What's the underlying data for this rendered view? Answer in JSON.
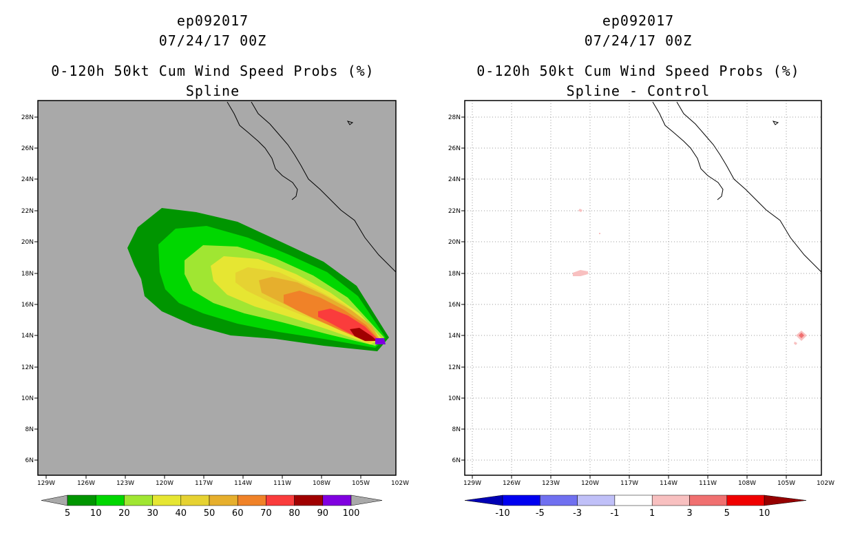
{
  "panels": [
    {
      "storm_id": "ep092017",
      "datetime": "07/24/17 00Z",
      "product": "0-120h 50kt Cum Wind Speed Probs (%)",
      "subtitle": "Spline"
    },
    {
      "storm_id": "ep092017",
      "datetime": "07/24/17 00Z",
      "product": "0-120h 50kt Cum Wind Speed Probs (%)",
      "subtitle": "Spline - Control"
    }
  ],
  "axes": {
    "lon_range": [
      -129.5,
      -102
    ],
    "lat_range": [
      5,
      29
    ],
    "lon_ticks": [
      "129W",
      "126W",
      "123W",
      "120W",
      "117W",
      "114W",
      "111W",
      "108W",
      "105W",
      "102W"
    ],
    "lat_ticks": [
      "6N",
      "8N",
      "10N",
      "12N",
      "14N",
      "16N",
      "18N",
      "20N",
      "22N",
      "24N",
      "26N",
      "28N"
    ]
  },
  "colors": {
    "land_ocean_gray": "#a9a9a9",
    "prob_bins": [
      "#009500",
      "#00d700",
      "#a0e632",
      "#e6e632",
      "#e6d232",
      "#e6af2d",
      "#f08228",
      "#fa3c3c",
      "#a00000",
      "#8000e0"
    ],
    "diff_bins": [
      "#0000b4",
      "#0000f0",
      "#7070f0",
      "#c0c0f8",
      "#ffffff",
      "#f8c0c0",
      "#f07070",
      "#f00000",
      "#960000"
    ]
  },
  "colorbars": {
    "prob_labels": [
      "5",
      "10",
      "20",
      "30",
      "40",
      "50",
      "60",
      "70",
      "80",
      "90",
      "100"
    ],
    "diff_labels": [
      "-10",
      "-5",
      "-3",
      "-1",
      "1",
      "3",
      "5",
      "10"
    ]
  }
}
